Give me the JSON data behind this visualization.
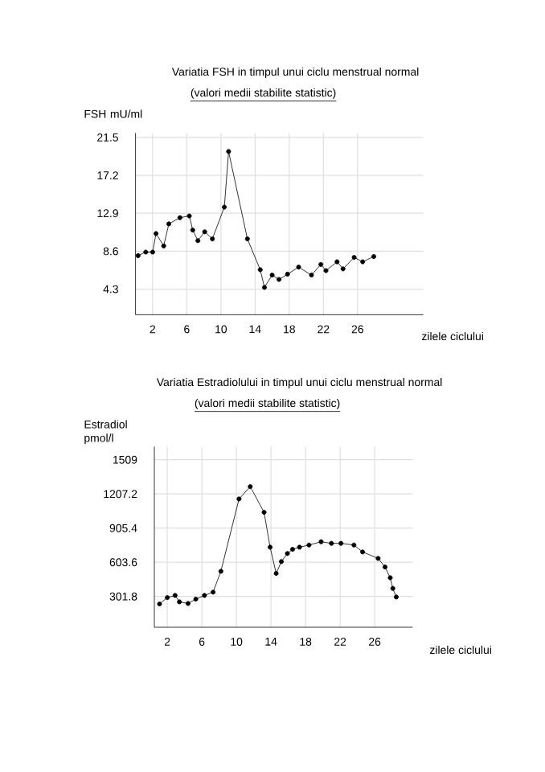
{
  "chart_data": [
    {
      "type": "line",
      "title": "Variatia FSH in timpul unui ciclu menstrual normal",
      "subtitle": "(valori medii stabilite statistic)",
      "ylabel": "FSH mU/ml",
      "xlabel": "zilele ciclului",
      "color": "#000000",
      "marker": "circle",
      "line_style": "solid",
      "grid": true,
      "xlim": [
        0,
        33.7
      ],
      "ylim": [
        1.4,
        22.0
      ],
      "xticks": [
        2,
        6,
        10,
        14,
        18,
        22,
        26
      ],
      "yticks": [
        4.3,
        8.6,
        12.9,
        17.2,
        21.5
      ],
      "x": [
        0.3,
        1.2,
        2,
        2.4,
        3.3,
        3.9,
        5.2,
        6.3,
        6.7,
        7.3,
        8.1,
        9.0,
        10.4,
        10.9,
        13.1,
        14.6,
        15.1,
        16.0,
        16.8,
        17.8,
        19.1,
        20.6,
        21.7,
        22.3,
        23.6,
        24.3,
        25.6,
        26.6,
        27.9
      ],
      "values": [
        8.1,
        8.5,
        8.5,
        10.6,
        9.2,
        11.7,
        12.4,
        12.6,
        11.0,
        9.8,
        10.8,
        10.0,
        13.6,
        19.9,
        10.0,
        6.5,
        4.5,
        5.9,
        5.4,
        6.0,
        6.8,
        5.9,
        7.1,
        6.4,
        7.4,
        6.6,
        7.9,
        7.4,
        8.0
      ]
    },
    {
      "type": "line",
      "title": "Variatia Estradiolului in timpul unui ciclu menstrual normal",
      "subtitle": "(valori medii stabilite statistic)",
      "ylabel": "Estradiol pmol/l",
      "xlabel": "zilele ciclului",
      "color": "#000000",
      "marker": "circle",
      "line_style": "solid",
      "grid": true,
      "xlim": [
        0.5,
        30.4
      ],
      "ylim": [
        30,
        1625
      ],
      "xticks": [
        2,
        6,
        10,
        14,
        18,
        22,
        26
      ],
      "yticks": [
        301.8,
        603.6,
        905.4,
        1207.2,
        1509
      ],
      "x": [
        1.1,
        2.0,
        2.9,
        3.4,
        4.4,
        5.3,
        6.3,
        7.3,
        8.2,
        10.3,
        11.6,
        13.2,
        13.9,
        14.6,
        15.2,
        15.9,
        16.5,
        17.3,
        18.4,
        19.8,
        21.0,
        22.1,
        23.6,
        24.6,
        26.4,
        27.2,
        27.8,
        28.1,
        28.5
      ],
      "values": [
        236,
        292,
        311,
        254,
        240,
        278,
        311,
        340,
        524,
        1163,
        1272,
        1045,
        737,
        505,
        610,
        681,
        718,
        737,
        756,
        785,
        771,
        771,
        756,
        695,
        638,
        562,
        467,
        373,
        297
      ]
    }
  ]
}
